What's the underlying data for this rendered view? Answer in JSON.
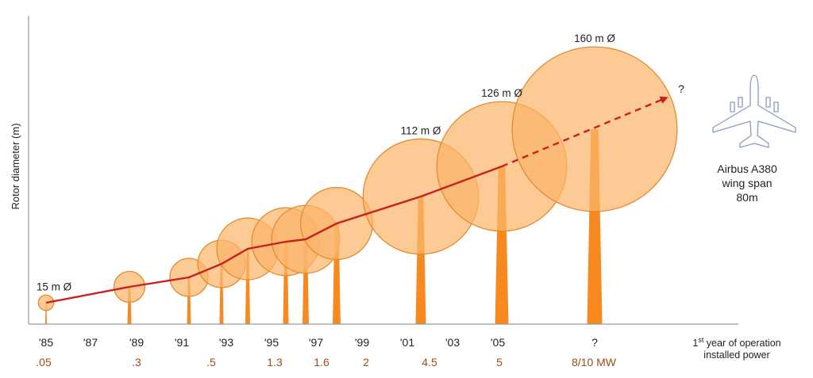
{
  "chart_data": {
    "type": "scatter",
    "ylabel": "Rotor diameter (m)",
    "x_tick_labels": [
      "'85",
      "'87",
      "'89",
      "'91",
      "'93",
      "'95",
      "'97",
      "'99",
      "'01",
      "'03",
      "'05",
      "?"
    ],
    "power_labels": [
      ".05",
      ".3",
      ".5",
      "1.3",
      "1.6",
      "2",
      "4.5",
      "5",
      "8/10 MW"
    ],
    "legend_year": "1st year of operation",
    "legend_year_sup": "st",
    "legend_power": "installed power",
    "turbines": [
      {
        "year": "'85",
        "diameter_m": 15,
        "label": "15 m Ø",
        "power": ".05"
      },
      {
        "year": "'89",
        "diameter_m": 30,
        "power": ".3"
      },
      {
        "year": "'91",
        "diameter_m": 37,
        "power": ".5"
      },
      {
        "year": "'93",
        "diameter_m": 46
      },
      {
        "year": "'94",
        "diameter_m": 60
      },
      {
        "year": "'95",
        "diameter_m": 66,
        "power": "1.3"
      },
      {
        "year": "'96",
        "diameter_m": 66,
        "power": "1.6"
      },
      {
        "year": "'98",
        "diameter_m": 70,
        "power": "2"
      },
      {
        "year": "'01",
        "diameter_m": 112,
        "label": "112 m Ø",
        "power": "4.5"
      },
      {
        "year": "'05",
        "diameter_m": 126,
        "label": "126 m Ø",
        "power": "5"
      },
      {
        "year": "?",
        "diameter_m": 160,
        "label": "160 m Ø",
        "power": "8/10 MW"
      }
    ],
    "trend_end_label": "?",
    "colors": {
      "disc_fill": "#fbb56b",
      "disc_stroke": "#e68a2e",
      "tower": "#f7891f",
      "trend": "#c8201e",
      "power_text": "#9a4e1c"
    }
  },
  "annotation": {
    "plane_icon": "airplane-icon",
    "caption_line1": "Airbus A380",
    "caption_line2": "wing span",
    "caption_line3": "80m"
  }
}
